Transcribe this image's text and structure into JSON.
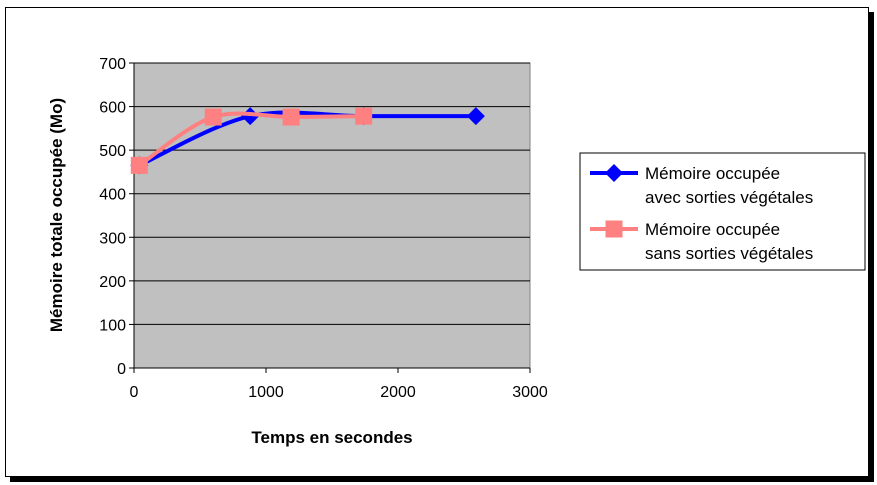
{
  "chart_data": {
    "type": "line",
    "title": "",
    "xlabel": "Temps en secondes",
    "ylabel": "Mémoire totale occupée (Mo)",
    "xlim": [
      0,
      3000
    ],
    "ylim": [
      0,
      700
    ],
    "x_ticks": [
      0,
      1000,
      2000,
      3000
    ],
    "y_ticks": [
      0,
      100,
      200,
      300,
      400,
      500,
      600,
      700
    ],
    "grid": "horizontal",
    "plot_background": "#c0c0c0",
    "legend_position": "right",
    "series": [
      {
        "name_lines": [
          "Mémoire occupée",
          "avec sorties végétales"
        ],
        "color": "#0000ff",
        "marker": "diamond",
        "points": [
          [
            40,
            465
          ],
          [
            880,
            578
          ],
          [
            1740,
            578
          ],
          [
            2590,
            578
          ]
        ]
      },
      {
        "name_lines": [
          "Mémoire occupée",
          "sans sorties végétales"
        ],
        "color": "#ff8080",
        "marker": "square",
        "points": [
          [
            40,
            465
          ],
          [
            600,
            576
          ],
          [
            1190,
            576
          ],
          [
            1740,
            578
          ]
        ]
      }
    ]
  }
}
